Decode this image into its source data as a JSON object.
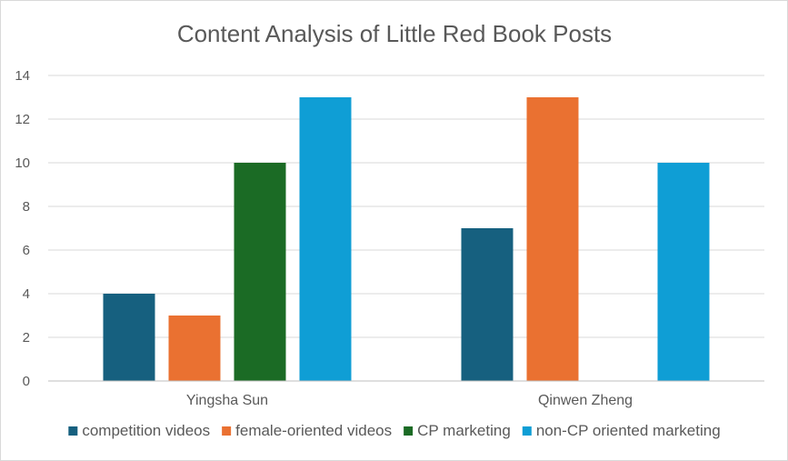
{
  "chart_data": {
    "type": "bar",
    "title": "Content Analysis of Little Red Book Posts",
    "xlabel": "",
    "ylabel": "",
    "categories": [
      "Yingsha Sun",
      "Qinwen Zheng"
    ],
    "series": [
      {
        "name": "competition videos",
        "color": "#16607f",
        "values": [
          4,
          7
        ]
      },
      {
        "name": "female-oriented videos",
        "color": "#ea7131",
        "values": [
          3,
          13
        ]
      },
      {
        "name": "CP marketing",
        "color": "#1b6b25",
        "values": [
          10,
          0
        ]
      },
      {
        "name": "non-CP oriented marketing",
        "color": "#0f9ed5",
        "values": [
          13,
          10
        ]
      }
    ],
    "ylim": [
      0,
      14
    ],
    "yticks": [
      0,
      2,
      4,
      6,
      8,
      10,
      12,
      14
    ],
    "grid": true,
    "legend": "bottom"
  }
}
